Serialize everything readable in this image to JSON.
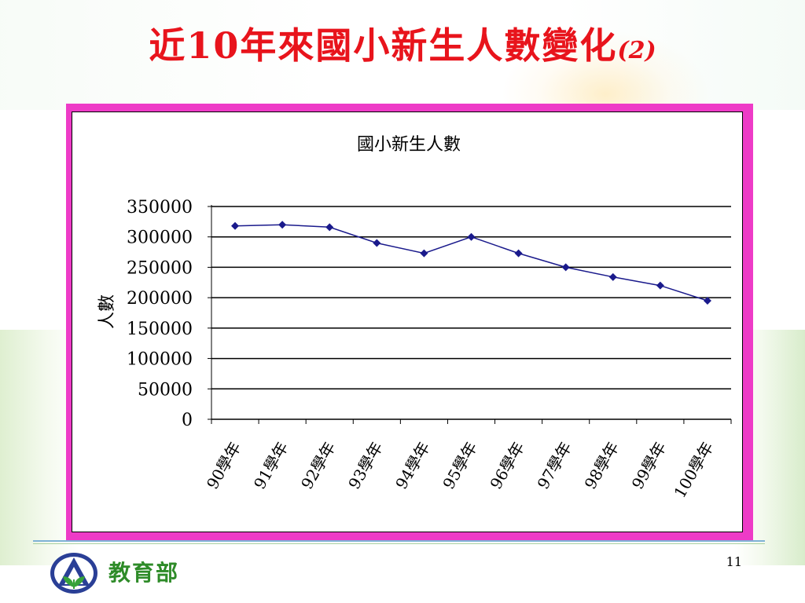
{
  "slide": {
    "title_main": "近10年來國小新生人數變化",
    "title_suffix": "(2)",
    "organization": "教育部",
    "page_number": "11",
    "logo_icon": "ministry-of-education-logo-icon"
  },
  "colors": {
    "title": "#e8141c",
    "frame": "#ee3bc7",
    "series": "#1a1a8c",
    "organization": "#2e8b28"
  },
  "chart_data": {
    "type": "line",
    "title": "國小新生人數",
    "ylabel": "人數",
    "xlabel": "",
    "categories": [
      "90學年",
      "91學年",
      "92學年",
      "93學年",
      "94學年",
      "95學年",
      "96學年",
      "97學年",
      "98學年",
      "99學年",
      "100學年"
    ],
    "series": [
      {
        "values": [
          318000,
          320000,
          316000,
          290000,
          273000,
          300000,
          273000,
          250000,
          234000,
          220000,
          195000
        ]
      }
    ],
    "ylim": [
      0,
      350000
    ],
    "yticks": [
      0,
      50000,
      100000,
      150000,
      200000,
      250000,
      300000,
      350000
    ],
    "grid": true,
    "marker": "diamond",
    "legend": "none"
  }
}
